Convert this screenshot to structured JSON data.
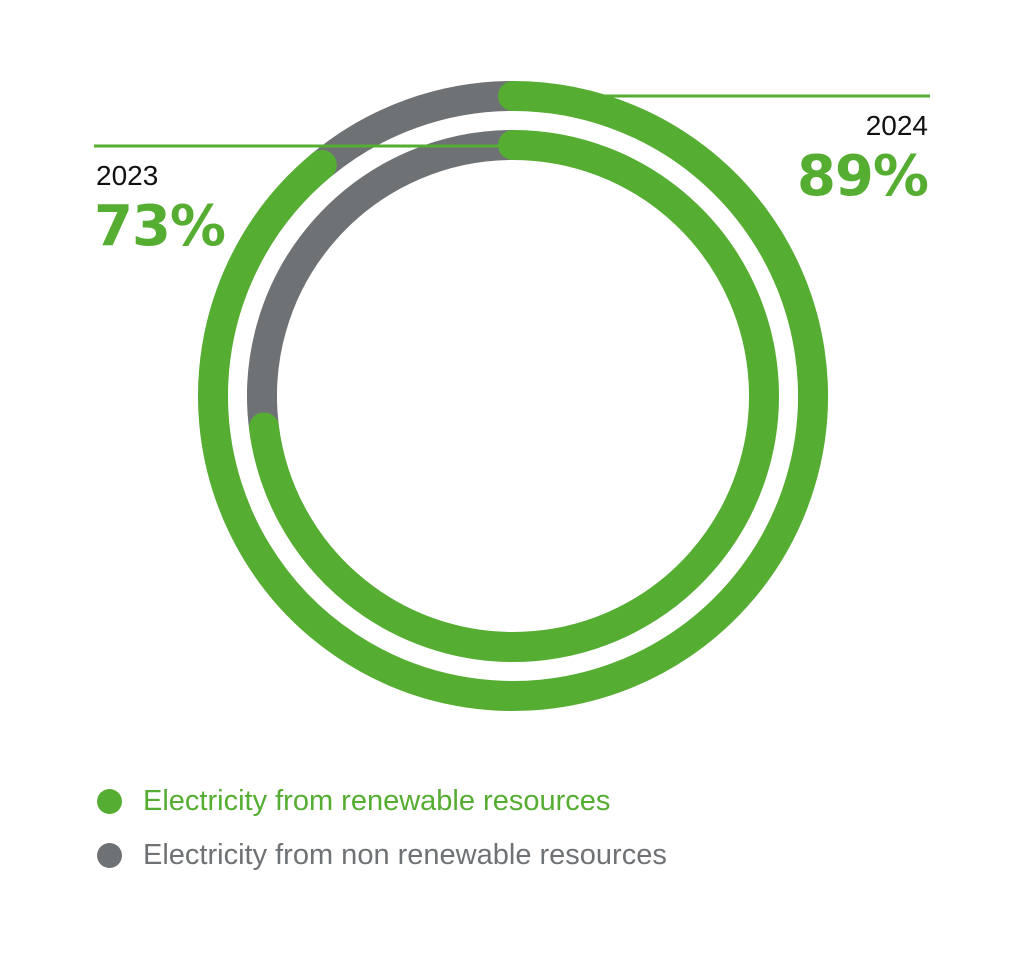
{
  "chart_data": {
    "type": "donut",
    "series": [
      {
        "name": "2023",
        "values": [
          73,
          27
        ],
        "label": "73%"
      },
      {
        "name": "2024",
        "values": [
          89,
          11
        ],
        "label": "89%"
      }
    ],
    "categories": [
      "Electricity from renewable resources",
      "Electricity from non renewable resources"
    ],
    "legend_position": "bottom-left"
  },
  "colors": {
    "renewable": "#55ad32",
    "non_renewable": "#6f7274",
    "leader_line": "#55ad32",
    "year_text": "#111111"
  }
}
